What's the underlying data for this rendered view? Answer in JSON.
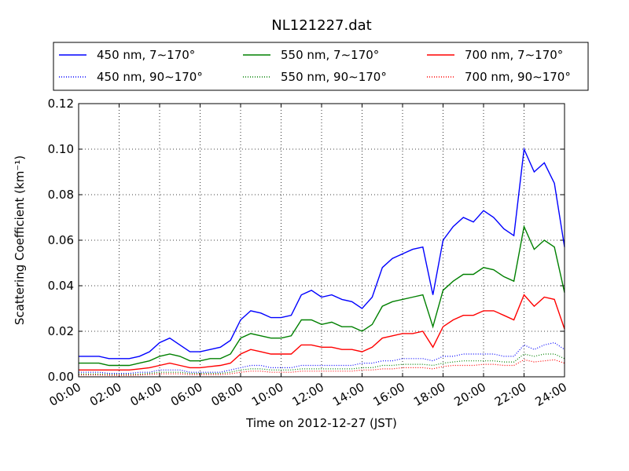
{
  "chart_data": {
    "type": "line",
    "title": "NL121227.dat",
    "x_label": "Time on 2012-12-27 (JST)",
    "y_label": "Scattering Coefficient (km⁻¹)",
    "x": [
      0,
      0.5,
      1,
      1.5,
      2,
      2.5,
      3,
      3.5,
      4,
      4.5,
      5,
      5.5,
      6,
      6.5,
      7,
      7.5,
      8,
      8.5,
      9,
      9.5,
      10,
      10.5,
      11,
      11.5,
      12,
      12.5,
      13,
      13.5,
      14,
      14.5,
      15,
      15.5,
      16,
      16.5,
      17,
      17.5,
      18,
      18.5,
      19,
      19.5,
      20,
      20.5,
      21,
      21.5,
      22,
      22.5,
      23,
      23.5,
      24
    ],
    "xlim": [
      0,
      24
    ],
    "xticks": [
      {
        "value": 0,
        "label": "00:00"
      },
      {
        "value": 2,
        "label": "02:00"
      },
      {
        "value": 4,
        "label": "04:00"
      },
      {
        "value": 6,
        "label": "06:00"
      },
      {
        "value": 8,
        "label": "08:00"
      },
      {
        "value": 10,
        "label": "10:00"
      },
      {
        "value": 12,
        "label": "12:00"
      },
      {
        "value": 14,
        "label": "14:00"
      },
      {
        "value": 16,
        "label": "16:00"
      },
      {
        "value": 18,
        "label": "18:00"
      },
      {
        "value": 20,
        "label": "20:00"
      },
      {
        "value": 22,
        "label": "22:00"
      },
      {
        "value": 24,
        "label": "24:00"
      }
    ],
    "ylim": [
      0,
      0.12
    ],
    "yticks": [
      {
        "value": 0,
        "label": "0.00"
      },
      {
        "value": 0.02,
        "label": "0.02"
      },
      {
        "value": 0.04,
        "label": "0.04"
      },
      {
        "value": 0.06,
        "label": "0.06"
      },
      {
        "value": 0.08,
        "label": "0.08"
      },
      {
        "value": 0.1,
        "label": "0.10"
      },
      {
        "value": 0.12,
        "label": "0.12"
      }
    ],
    "grid": true,
    "legend": "top",
    "series": [
      {
        "name": "450 nm, 7∼170°",
        "color": "#0000ff",
        "linestyle": "solid",
        "values": [
          0.009,
          0.009,
          0.009,
          0.008,
          0.008,
          0.008,
          0.009,
          0.011,
          0.015,
          0.017,
          0.014,
          0.011,
          0.011,
          0.012,
          0.013,
          0.016,
          0.025,
          0.029,
          0.028,
          0.026,
          0.026,
          0.027,
          0.036,
          0.038,
          0.035,
          0.036,
          0.034,
          0.033,
          0.03,
          0.035,
          0.048,
          0.052,
          0.054,
          0.056,
          0.057,
          0.036,
          0.06,
          0.066,
          0.07,
          0.068,
          0.073,
          0.07,
          0.065,
          0.062,
          0.1,
          0.09,
          0.094,
          0.085,
          0.057
        ]
      },
      {
        "name": "550 nm, 7∼170°",
        "color": "#008000",
        "linestyle": "solid",
        "values": [
          0.006,
          0.006,
          0.006,
          0.005,
          0.005,
          0.005,
          0.006,
          0.007,
          0.009,
          0.01,
          0.009,
          0.007,
          0.007,
          0.008,
          0.008,
          0.01,
          0.017,
          0.019,
          0.018,
          0.017,
          0.017,
          0.018,
          0.025,
          0.025,
          0.023,
          0.024,
          0.022,
          0.022,
          0.02,
          0.023,
          0.031,
          0.033,
          0.034,
          0.035,
          0.036,
          0.022,
          0.038,
          0.042,
          0.045,
          0.045,
          0.048,
          0.047,
          0.044,
          0.042,
          0.066,
          0.056,
          0.06,
          0.057,
          0.037
        ]
      },
      {
        "name": "700 nm, 7∼170°",
        "color": "#ff0000",
        "linestyle": "solid",
        "values": [
          0.003,
          0.003,
          0.003,
          0.003,
          0.003,
          0.003,
          0.0035,
          0.004,
          0.005,
          0.006,
          0.005,
          0.004,
          0.004,
          0.0045,
          0.005,
          0.006,
          0.01,
          0.012,
          0.011,
          0.01,
          0.01,
          0.01,
          0.014,
          0.014,
          0.013,
          0.013,
          0.012,
          0.012,
          0.011,
          0.013,
          0.017,
          0.018,
          0.019,
          0.019,
          0.02,
          0.013,
          0.022,
          0.025,
          0.027,
          0.027,
          0.029,
          0.029,
          0.027,
          0.025,
          0.036,
          0.031,
          0.035,
          0.034,
          0.021
        ]
      },
      {
        "name": "450 nm, 90∼170°",
        "color": "#0000ff",
        "linestyle": "dotted",
        "values": [
          0.002,
          0.002,
          0.002,
          0.0015,
          0.0015,
          0.0015,
          0.002,
          0.002,
          0.003,
          0.003,
          0.003,
          0.002,
          0.002,
          0.002,
          0.002,
          0.003,
          0.004,
          0.005,
          0.005,
          0.004,
          0.004,
          0.004,
          0.005,
          0.005,
          0.005,
          0.005,
          0.005,
          0.005,
          0.006,
          0.006,
          0.007,
          0.007,
          0.008,
          0.008,
          0.008,
          0.007,
          0.009,
          0.009,
          0.01,
          0.01,
          0.01,
          0.01,
          0.009,
          0.009,
          0.014,
          0.012,
          0.014,
          0.015,
          0.012
        ]
      },
      {
        "name": "550 nm, 90∼170°",
        "color": "#008000",
        "linestyle": "dotted",
        "values": [
          0.0012,
          0.0012,
          0.0012,
          0.001,
          0.001,
          0.001,
          0.0012,
          0.0015,
          0.002,
          0.002,
          0.002,
          0.0015,
          0.0015,
          0.0015,
          0.0015,
          0.002,
          0.003,
          0.0035,
          0.0035,
          0.003,
          0.003,
          0.003,
          0.0035,
          0.0035,
          0.0035,
          0.0035,
          0.0035,
          0.0035,
          0.004,
          0.004,
          0.005,
          0.005,
          0.0055,
          0.0055,
          0.0055,
          0.005,
          0.006,
          0.0065,
          0.007,
          0.007,
          0.007,
          0.007,
          0.0065,
          0.0065,
          0.01,
          0.009,
          0.01,
          0.01,
          0.008
        ]
      },
      {
        "name": "700 nm, 90∼170°",
        "color": "#ff0000",
        "linestyle": "dotted",
        "values": [
          0.0008,
          0.0008,
          0.0008,
          0.0007,
          0.0007,
          0.0007,
          0.0008,
          0.001,
          0.0013,
          0.0013,
          0.0013,
          0.001,
          0.001,
          0.001,
          0.001,
          0.0013,
          0.002,
          0.0025,
          0.0025,
          0.002,
          0.002,
          0.002,
          0.0025,
          0.0025,
          0.0025,
          0.0025,
          0.0025,
          0.0025,
          0.003,
          0.003,
          0.0035,
          0.0035,
          0.004,
          0.004,
          0.004,
          0.0035,
          0.0045,
          0.005,
          0.005,
          0.005,
          0.0055,
          0.0055,
          0.005,
          0.005,
          0.0075,
          0.0065,
          0.007,
          0.0075,
          0.006
        ]
      }
    ]
  }
}
